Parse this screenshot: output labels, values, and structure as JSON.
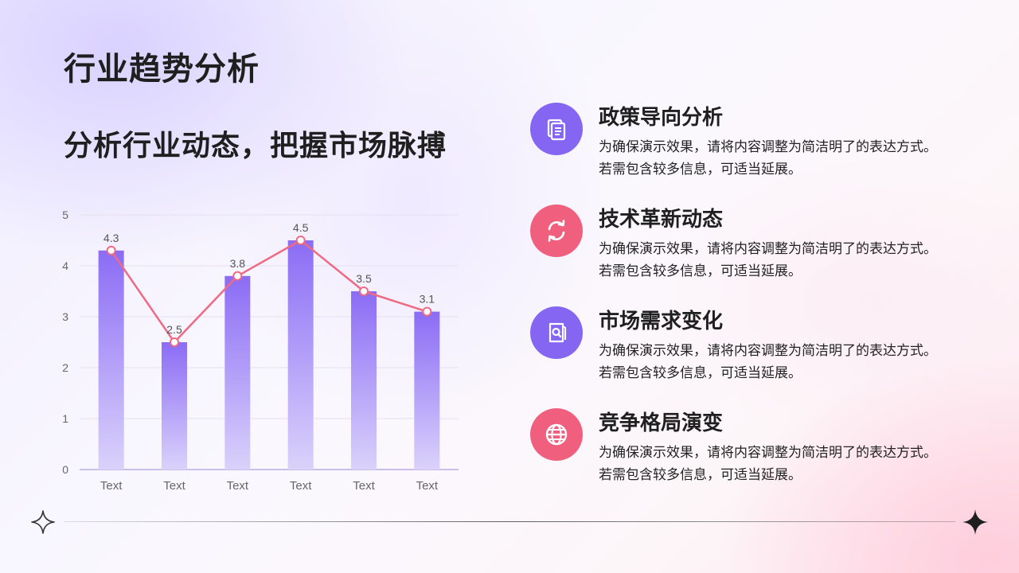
{
  "header": {
    "title": "行业趋势分析",
    "subtitle": "分析行业动态，把握市场脉搏"
  },
  "chart_data": {
    "type": "bar",
    "categories": [
      "Text",
      "Text",
      "Text",
      "Text",
      "Text",
      "Text"
    ],
    "series": [
      {
        "type": "bar",
        "values": [
          4.3,
          2.5,
          3.8,
          4.5,
          3.5,
          3.1
        ]
      },
      {
        "type": "line",
        "values": [
          4.3,
          2.5,
          3.8,
          4.5,
          3.5,
          3.1
        ]
      }
    ],
    "data_labels": [
      "4.3",
      "2.5",
      "3.8",
      "4.5",
      "3.5",
      "3.1"
    ],
    "y_ticks": [
      "0",
      "1",
      "2",
      "3",
      "4",
      "5"
    ],
    "ylim": [
      0,
      5
    ],
    "grid": true,
    "colors": {
      "bar_top": "#8b6cf5",
      "bar_bottom": "#d9d0fb",
      "line": "#ef6a82",
      "marker_fill": "#ffffff"
    }
  },
  "items": [
    {
      "title": "政策导向分析",
      "desc_line1": "为确保演示效果，请将内容调整为简洁明了的表达方式。",
      "desc_line2": "若需包含较多信息，可适当延展。",
      "icon": "document-icon",
      "color": "#8566f2"
    },
    {
      "title": "技术革新动态",
      "desc_line1": "为确保演示效果，请将内容调整为简洁明了的表达方式。",
      "desc_line2": "若需包含较多信息，可适当延展。",
      "icon": "refresh-icon",
      "color": "#f0607e"
    },
    {
      "title": "市场需求变化",
      "desc_line1": "为确保演示效果，请将内容调整为简洁明了的表达方式。",
      "desc_line2": "若需包含较多信息，可适当延展。",
      "icon": "search-document-icon",
      "color": "#8566f2"
    },
    {
      "title": "竞争格局演变",
      "desc_line1": "为确保演示效果，请将内容调整为简洁明了的表达方式。",
      "desc_line2": "若需包含较多信息，可适当延展。",
      "icon": "globe-icon",
      "color": "#f0607e"
    }
  ],
  "decor": {
    "left_star": "sparkle-outline-icon",
    "right_star": "sparkle-filled-icon"
  }
}
